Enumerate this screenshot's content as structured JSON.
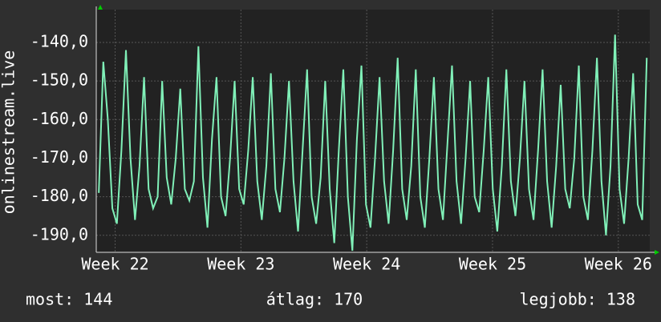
{
  "chart_data": {
    "type": "line",
    "y_label": "onlinestream.live",
    "x": [
      21.87,
      21.906,
      21.942,
      21.978,
      22.014,
      22.05,
      22.086,
      22.122,
      22.158,
      22.194,
      22.23,
      22.266,
      22.302,
      22.338,
      22.374,
      22.41,
      22.446,
      22.482,
      22.518,
      22.554,
      22.59,
      22.626,
      22.662,
      22.698,
      22.734,
      22.77,
      22.806,
      22.842,
      22.878,
      22.914,
      22.95,
      22.986,
      23.022,
      23.058,
      23.094,
      23.13,
      23.166,
      23.202,
      23.238,
      23.274,
      23.31,
      23.346,
      23.382,
      23.418,
      23.454,
      23.49,
      23.526,
      23.562,
      23.598,
      23.634,
      23.67,
      23.706,
      23.742,
      23.778,
      23.814,
      23.85,
      23.886,
      23.922,
      23.958,
      23.994,
      24.03,
      24.066,
      24.102,
      24.138,
      24.174,
      24.21,
      24.246,
      24.282,
      24.318,
      24.354,
      24.39,
      24.426,
      24.462,
      24.498,
      24.534,
      24.57,
      24.606,
      24.642,
      24.678,
      24.714,
      24.75,
      24.786,
      24.822,
      24.858,
      24.894,
      24.93,
      24.966,
      25.002,
      25.038,
      25.074,
      25.11,
      25.146,
      25.182,
      25.218,
      25.254,
      25.29,
      25.326,
      25.362,
      25.398,
      25.434,
      25.47,
      25.506,
      25.542,
      25.578,
      25.614,
      25.65,
      25.686,
      25.722,
      25.758,
      25.794,
      25.83,
      25.866,
      25.902,
      25.938,
      25.974,
      26.01,
      26.046,
      26.082,
      26.118,
      26.154,
      26.19,
      26.226
    ],
    "series": [
      {
        "color": "#80f0b8",
        "values": [
          -179,
          -145,
          -160,
          -183,
          -187,
          -168,
          -142,
          -170,
          -186,
          -172,
          -149,
          -178,
          -183,
          -180,
          -150,
          -175,
          -182,
          -170,
          -152,
          -178,
          -181,
          -176,
          -141,
          -175,
          -188,
          -165,
          -149,
          -180,
          -185,
          -170,
          -150,
          -178,
          -182,
          -168,
          -149,
          -176,
          -186,
          -172,
          -148,
          -178,
          -184,
          -170,
          -150,
          -176,
          -189,
          -168,
          -147,
          -180,
          -187,
          -175,
          -150,
          -178,
          -192,
          -168,
          -147,
          -180,
          -194,
          -165,
          -146,
          -182,
          -188,
          -170,
          -149,
          -176,
          -187,
          -168,
          -144,
          -178,
          -186,
          -172,
          -147,
          -180,
          -188,
          -170,
          -149,
          -178,
          -186,
          -166,
          -146,
          -176,
          -187,
          -170,
          -150,
          -180,
          -184,
          -168,
          -149,
          -178,
          -189,
          -172,
          -147,
          -176,
          -185,
          -170,
          -150,
          -178,
          -186,
          -168,
          -147,
          -176,
          -188,
          -172,
          -151,
          -178,
          -183,
          -170,
          -146,
          -180,
          -186,
          -168,
          -144,
          -176,
          -190,
          -172,
          -138,
          -178,
          -187,
          -170,
          -148,
          -182,
          -186,
          -144
        ]
      }
    ],
    "xlim": [
      21.85,
      26.25
    ],
    "xticks": [
      {
        "value": 22,
        "label": "Week 22"
      },
      {
        "value": 23,
        "label": "Week 23"
      },
      {
        "value": 24,
        "label": "Week 24"
      },
      {
        "value": 25,
        "label": "Week 25"
      },
      {
        "value": 26,
        "label": "Week 26"
      }
    ],
    "ylim": [
      -194.4,
      -131.5
    ],
    "yticks": [
      {
        "value": -140,
        "label": "-140,0"
      },
      {
        "value": -150,
        "label": "-150,0"
      },
      {
        "value": -160,
        "label": "-160,0"
      },
      {
        "value": -170,
        "label": "-170,0"
      },
      {
        "value": -180,
        "label": "-180,0"
      },
      {
        "value": -190,
        "label": "-190,0"
      }
    ],
    "grid": true
  },
  "footer": {
    "current": "most: 144",
    "average": "átlag: 170",
    "best": "legjobb: 138"
  }
}
